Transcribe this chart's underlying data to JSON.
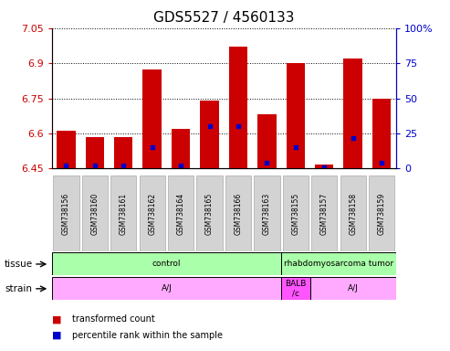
{
  "title": "GDS5527 / 4560133",
  "samples": [
    "GSM738156",
    "GSM738160",
    "GSM738161",
    "GSM738162",
    "GSM738164",
    "GSM738165",
    "GSM738166",
    "GSM738163",
    "GSM738155",
    "GSM738157",
    "GSM738158",
    "GSM738159"
  ],
  "bar_values": [
    6.61,
    6.585,
    6.585,
    6.875,
    6.62,
    6.74,
    6.97,
    6.68,
    6.9,
    6.465,
    6.92,
    6.75
  ],
  "bar_base": 6.45,
  "blue_values": [
    2.0,
    2.0,
    2.0,
    15.0,
    2.0,
    30.0,
    30.0,
    4.0,
    15.0,
    1.0,
    22.0,
    4.0
  ],
  "y_min": 6.45,
  "y_max": 7.05,
  "y_ticks": [
    6.45,
    6.6,
    6.75,
    6.9,
    7.05
  ],
  "y2_ticks": [
    0,
    25,
    50,
    75,
    100
  ],
  "bar_color": "#cc0000",
  "blue_color": "#0000cc",
  "bar_width": 0.65,
  "legend_red": "transformed count",
  "legend_blue": "percentile rank within the sample",
  "title_fontsize": 11,
  "axis_color_left": "#cc0000",
  "axis_color_right": "#0000cc",
  "tissue_groups": [
    {
      "label": "control",
      "start": 0,
      "end": 8,
      "color": "#aaffaa"
    },
    {
      "label": "rhabdomyosarcoma tumor",
      "start": 8,
      "end": 12,
      "color": "#aaffaa"
    }
  ],
  "strain_groups": [
    {
      "label": "A/J",
      "start": 0,
      "end": 8,
      "color": "#ffaaff"
    },
    {
      "label": "BALB\n/c",
      "start": 8,
      "end": 9,
      "color": "#ff55ff"
    },
    {
      "label": "A/J",
      "start": 9,
      "end": 12,
      "color": "#ffaaff"
    }
  ]
}
